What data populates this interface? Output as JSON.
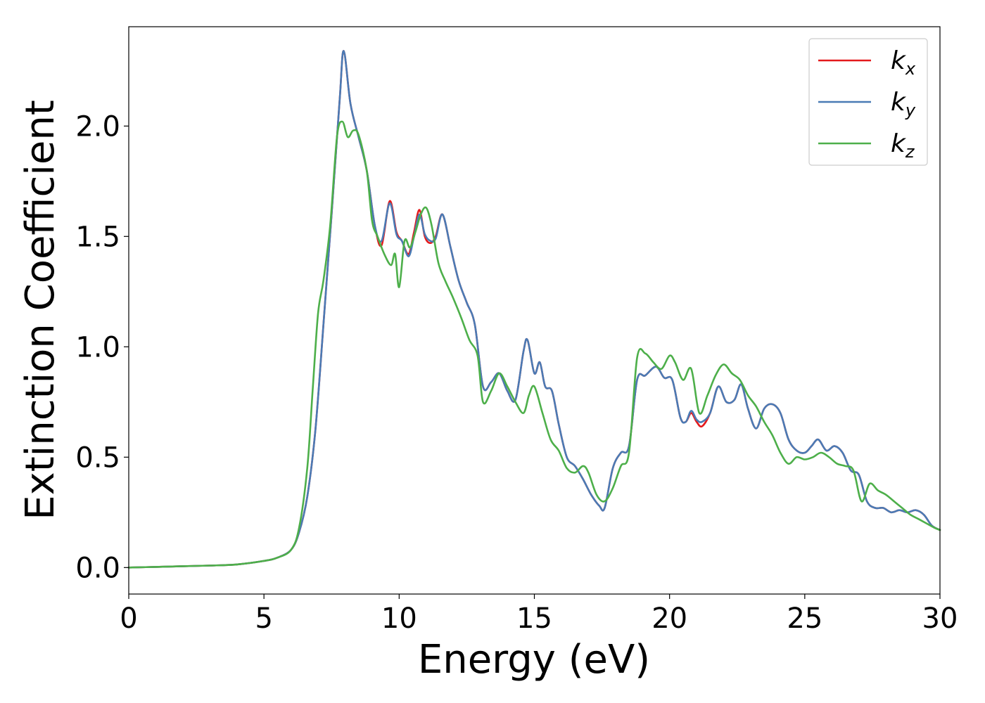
{
  "chart_data": {
    "type": "line",
    "xlabel": "Energy (eV)",
    "ylabel": "Extinction Coefficient",
    "xlim": [
      0,
      30
    ],
    "ylim": [
      -0.12,
      2.45
    ],
    "xticks": [
      0,
      5,
      10,
      15,
      20,
      25,
      30
    ],
    "xtick_labels": [
      "0",
      "5",
      "10",
      "15",
      "20",
      "25",
      "30"
    ],
    "yticks": [
      0.0,
      0.5,
      1.0,
      1.5,
      2.0
    ],
    "ytick_labels": [
      "0.0",
      "0.5",
      "1.0",
      "1.5",
      "2.0"
    ],
    "grid": false,
    "legend_position": "top-right",
    "series": [
      {
        "name": "k_x",
        "label_main": "k",
        "label_sub": "x",
        "color": "#e41a1c",
        "x": [
          0,
          1,
          2,
          3,
          4,
          5,
          5.5,
          6,
          6.3,
          6.6,
          6.9,
          7.2,
          7.5,
          7.8,
          7.95,
          8.2,
          8.5,
          8.8,
          9.1,
          9.35,
          9.65,
          9.9,
          10.1,
          10.35,
          10.55,
          10.75,
          10.95,
          11.15,
          11.35,
          11.6,
          11.9,
          12.2,
          12.5,
          12.8,
          13.1,
          13.4,
          13.7,
          14.0,
          14.3,
          14.6,
          14.75,
          15.0,
          15.2,
          15.4,
          15.65,
          15.9,
          16.2,
          16.5,
          16.8,
          17.1,
          17.4,
          17.6,
          17.9,
          18.2,
          18.5,
          18.8,
          19.1,
          19.5,
          19.8,
          20.1,
          20.4,
          20.6,
          20.8,
          21.0,
          21.2,
          21.5,
          21.8,
          22.1,
          22.4,
          22.65,
          22.9,
          23.2,
          23.5,
          23.8,
          24.1,
          24.4,
          24.7,
          25.0,
          25.25,
          25.5,
          25.8,
          26.1,
          26.4,
          26.7,
          27.0,
          27.3,
          27.6,
          27.9,
          28.2,
          28.5,
          28.8,
          29.1,
          29.4,
          29.7,
          30
        ],
        "y": [
          0.0,
          0.003,
          0.006,
          0.009,
          0.014,
          0.03,
          0.045,
          0.08,
          0.16,
          0.32,
          0.62,
          1.1,
          1.6,
          2.12,
          2.34,
          2.1,
          1.95,
          1.8,
          1.55,
          1.46,
          1.66,
          1.52,
          1.48,
          1.42,
          1.52,
          1.62,
          1.5,
          1.47,
          1.5,
          1.6,
          1.45,
          1.3,
          1.2,
          1.1,
          0.82,
          0.84,
          0.88,
          0.8,
          0.76,
          0.98,
          1.03,
          0.88,
          0.93,
          0.82,
          0.8,
          0.65,
          0.5,
          0.46,
          0.4,
          0.33,
          0.28,
          0.27,
          0.45,
          0.52,
          0.55,
          0.85,
          0.87,
          0.91,
          0.86,
          0.85,
          0.68,
          0.66,
          0.7,
          0.66,
          0.64,
          0.7,
          0.82,
          0.75,
          0.76,
          0.83,
          0.72,
          0.63,
          0.72,
          0.74,
          0.7,
          0.58,
          0.53,
          0.52,
          0.55,
          0.58,
          0.53,
          0.55,
          0.52,
          0.44,
          0.42,
          0.3,
          0.27,
          0.27,
          0.25,
          0.26,
          0.25,
          0.26,
          0.24,
          0.19,
          0.17
        ]
      },
      {
        "name": "k_y",
        "label_main": "k",
        "label_sub": "y",
        "color": "#4a7bb5",
        "x": [
          0,
          1,
          2,
          3,
          4,
          5,
          5.5,
          6,
          6.3,
          6.6,
          6.9,
          7.2,
          7.5,
          7.8,
          7.95,
          8.2,
          8.5,
          8.8,
          9.1,
          9.35,
          9.65,
          9.9,
          10.1,
          10.35,
          10.55,
          10.75,
          10.95,
          11.15,
          11.35,
          11.6,
          11.9,
          12.2,
          12.5,
          12.8,
          13.1,
          13.4,
          13.7,
          14.0,
          14.3,
          14.6,
          14.75,
          15.0,
          15.2,
          15.4,
          15.65,
          15.9,
          16.2,
          16.5,
          16.8,
          17.1,
          17.4,
          17.6,
          17.9,
          18.2,
          18.5,
          18.8,
          19.1,
          19.5,
          19.8,
          20.1,
          20.4,
          20.6,
          20.8,
          21.0,
          21.2,
          21.5,
          21.8,
          22.1,
          22.4,
          22.65,
          22.9,
          23.2,
          23.5,
          23.8,
          24.1,
          24.4,
          24.7,
          25.0,
          25.25,
          25.5,
          25.8,
          26.1,
          26.4,
          26.7,
          27.0,
          27.3,
          27.6,
          27.9,
          28.2,
          28.5,
          28.8,
          29.1,
          29.4,
          29.7,
          30
        ],
        "y": [
          0.0,
          0.003,
          0.006,
          0.009,
          0.014,
          0.03,
          0.045,
          0.08,
          0.16,
          0.32,
          0.62,
          1.1,
          1.6,
          2.12,
          2.34,
          2.1,
          1.95,
          1.8,
          1.55,
          1.48,
          1.65,
          1.51,
          1.48,
          1.41,
          1.5,
          1.6,
          1.51,
          1.48,
          1.49,
          1.6,
          1.45,
          1.3,
          1.2,
          1.1,
          0.82,
          0.84,
          0.88,
          0.8,
          0.76,
          0.98,
          1.03,
          0.88,
          0.93,
          0.82,
          0.8,
          0.65,
          0.5,
          0.46,
          0.4,
          0.33,
          0.28,
          0.27,
          0.45,
          0.52,
          0.55,
          0.85,
          0.87,
          0.91,
          0.86,
          0.85,
          0.68,
          0.66,
          0.71,
          0.67,
          0.66,
          0.7,
          0.82,
          0.75,
          0.76,
          0.83,
          0.72,
          0.63,
          0.72,
          0.74,
          0.7,
          0.58,
          0.53,
          0.52,
          0.55,
          0.58,
          0.53,
          0.55,
          0.52,
          0.44,
          0.42,
          0.3,
          0.27,
          0.27,
          0.25,
          0.26,
          0.25,
          0.26,
          0.24,
          0.19,
          0.17
        ]
      },
      {
        "name": "k_z",
        "label_main": "k",
        "label_sub": "z",
        "color": "#4daf4a",
        "x": [
          0,
          1,
          2,
          3,
          4,
          5,
          5.5,
          6,
          6.3,
          6.6,
          6.8,
          7.0,
          7.2,
          7.45,
          7.7,
          7.9,
          8.1,
          8.3,
          8.5,
          8.8,
          9.0,
          9.2,
          9.45,
          9.7,
          9.85,
          10.0,
          10.2,
          10.4,
          10.6,
          10.8,
          11.0,
          11.2,
          11.45,
          11.7,
          12.0,
          12.3,
          12.6,
          12.9,
          13.1,
          13.4,
          13.7,
          14.0,
          14.3,
          14.6,
          14.8,
          15.0,
          15.3,
          15.6,
          15.9,
          16.2,
          16.5,
          16.8,
          17.0,
          17.3,
          17.6,
          17.9,
          18.2,
          18.5,
          18.8,
          19.1,
          19.4,
          19.7,
          20.0,
          20.2,
          20.5,
          20.8,
          21.1,
          21.4,
          21.7,
          22.0,
          22.3,
          22.6,
          22.9,
          23.2,
          23.5,
          23.8,
          24.1,
          24.4,
          24.7,
          25.0,
          25.3,
          25.6,
          25.9,
          26.2,
          26.5,
          26.8,
          27.1,
          27.4,
          27.7,
          28.0,
          28.3,
          28.6,
          28.9,
          29.2,
          29.5,
          29.8,
          30
        ],
        "y": [
          0.0,
          0.003,
          0.006,
          0.009,
          0.014,
          0.03,
          0.045,
          0.08,
          0.18,
          0.45,
          0.8,
          1.15,
          1.3,
          1.55,
          1.95,
          2.02,
          1.95,
          1.98,
          1.96,
          1.8,
          1.57,
          1.5,
          1.42,
          1.37,
          1.42,
          1.27,
          1.48,
          1.45,
          1.52,
          1.6,
          1.63,
          1.55,
          1.38,
          1.3,
          1.22,
          1.13,
          1.03,
          0.96,
          0.75,
          0.8,
          0.88,
          0.82,
          0.75,
          0.7,
          0.78,
          0.82,
          0.7,
          0.58,
          0.53,
          0.45,
          0.43,
          0.46,
          0.43,
          0.33,
          0.3,
          0.36,
          0.46,
          0.52,
          0.95,
          0.97,
          0.93,
          0.9,
          0.96,
          0.93,
          0.85,
          0.9,
          0.7,
          0.78,
          0.87,
          0.92,
          0.88,
          0.85,
          0.78,
          0.73,
          0.66,
          0.6,
          0.52,
          0.47,
          0.5,
          0.49,
          0.5,
          0.52,
          0.5,
          0.47,
          0.46,
          0.44,
          0.3,
          0.38,
          0.35,
          0.33,
          0.3,
          0.27,
          0.24,
          0.22,
          0.2,
          0.18,
          0.17
        ]
      }
    ]
  }
}
